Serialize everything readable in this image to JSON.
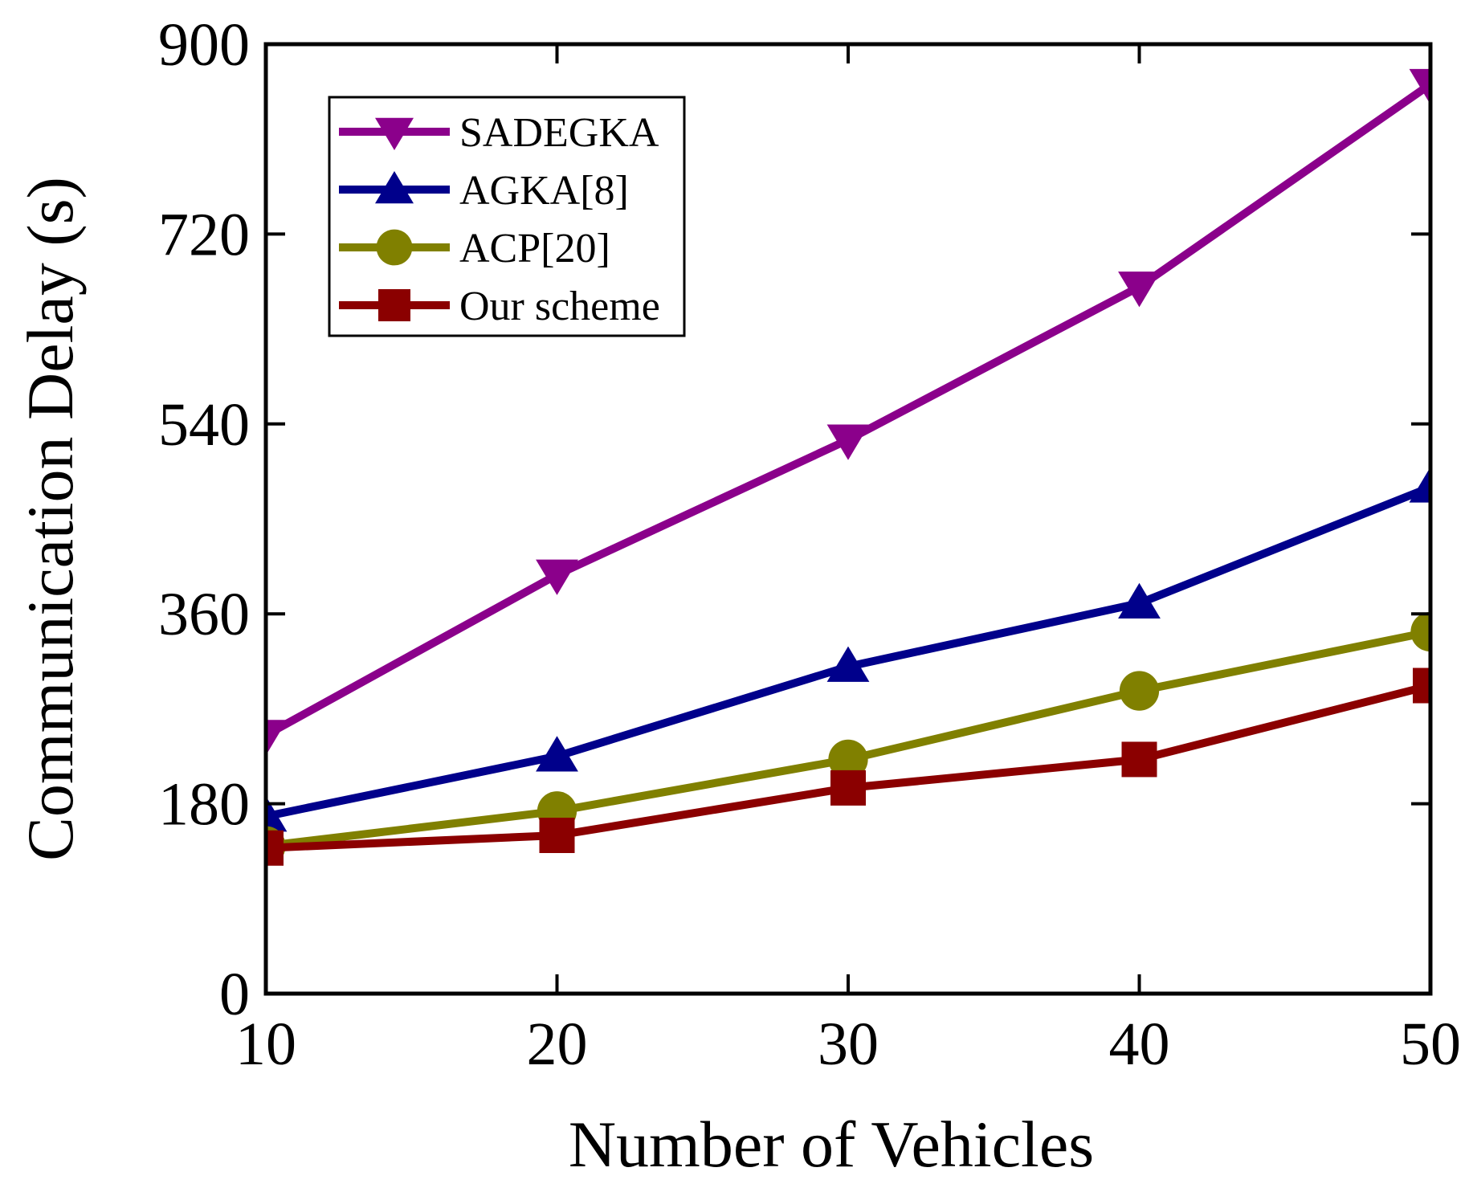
{
  "chart_data": {
    "type": "line",
    "title": "",
    "xlabel": "Number of Vehicles",
    "ylabel": "Communication Delay (s)",
    "x": [
      10,
      20,
      30,
      40,
      50
    ],
    "xlim": [
      10,
      50
    ],
    "ylim": [
      0,
      900
    ],
    "x_ticks": [
      "10",
      "20",
      "30",
      "40",
      "50"
    ],
    "y_ticks": [
      "0",
      "180",
      "360",
      "540",
      "720",
      "900"
    ],
    "x_tick_values": [
      10,
      20,
      30,
      40,
      50
    ],
    "y_tick_values": [
      0,
      180,
      360,
      540,
      720,
      900
    ],
    "grid": false,
    "legend_position": "top-left",
    "series": [
      {
        "name": "SADEGKA",
        "values": [
          245,
          397,
          525,
          670,
          862
        ],
        "color": "#8B008B",
        "marker": "triangle-down"
      },
      {
        "name": "AGKA[8]",
        "values": [
          168,
          225,
          310,
          370,
          480
        ],
        "color": "#00008B",
        "marker": "triangle-up"
      },
      {
        "name": "ACP[20]",
        "values": [
          140,
          173,
          222,
          287,
          343
        ],
        "color": "#808000",
        "marker": "circle"
      },
      {
        "name": "Our scheme",
        "values": [
          138,
          150,
          195,
          222,
          292
        ],
        "color": "#8B0000",
        "marker": "square"
      }
    ]
  }
}
